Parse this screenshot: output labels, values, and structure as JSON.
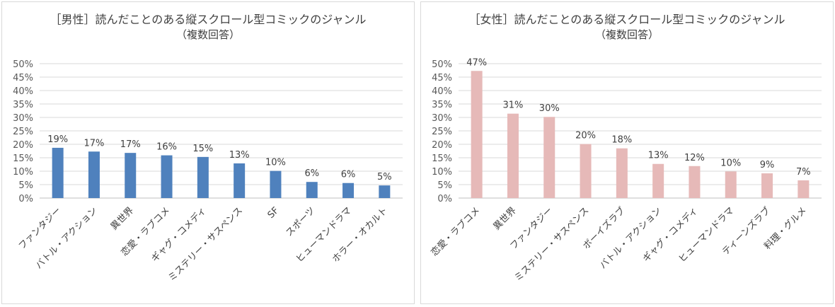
{
  "chart_data": [
    {
      "type": "bar",
      "title": "［男性］読んだことのある縦スクロール型コミックのジャンル",
      "subtitle": "（複数回答）",
      "categories": [
        "ファンタジー",
        "バトル・アクション",
        "異世界",
        "恋愛・ラブコメ",
        "ギャグ・コメディ",
        "ミステリー・サスペンス",
        "SF",
        "スポーツ",
        "ヒューマンドラマ",
        "ホラー・オカルト"
      ],
      "values": [
        18.7,
        17.3,
        16.8,
        15.9,
        15.3,
        12.9,
        10.1,
        6.0,
        5.6,
        4.7
      ],
      "data_labels": [
        "19%",
        "17%",
        "17%",
        "16%",
        "15%",
        "13%",
        "10%",
        "6%",
        "6%",
        "5%"
      ],
      "ylim": [
        0,
        50
      ],
      "yticks": [
        "0%",
        "5%",
        "10%",
        "15%",
        "20%",
        "25%",
        "30%",
        "35%",
        "40%",
        "45%",
        "50%"
      ],
      "xlabel": "",
      "ylabel": "",
      "grid": true,
      "bar_color": "#4f81bd"
    },
    {
      "type": "bar",
      "title": "［女性］読んだことのある縦スクロール型コミックのジャンル",
      "subtitle": "（複数回答）",
      "categories": [
        "恋愛・ラブコメ",
        "異世界",
        "ファンタジー",
        "ミステリー・サスペンス",
        "ボーイズラブ",
        "バトル・アクション",
        "ギャグ・コメディ",
        "ヒューマンドラマ",
        "ティーンズラブ",
        "料理・グルメ"
      ],
      "values": [
        47.3,
        31.4,
        30.2,
        20.1,
        18.5,
        12.7,
        11.9,
        9.9,
        9.2,
        6.6
      ],
      "data_labels": [
        "47%",
        "31%",
        "30%",
        "20%",
        "18%",
        "13%",
        "12%",
        "10%",
        "9%",
        "7%"
      ],
      "ylim": [
        0,
        50
      ],
      "yticks": [
        "0%",
        "5%",
        "10%",
        "15%",
        "20%",
        "25%",
        "30%",
        "35%",
        "40%",
        "45%",
        "50%"
      ],
      "xlabel": "",
      "ylabel": "",
      "grid": true,
      "bar_color": "#e6b9b8"
    }
  ]
}
